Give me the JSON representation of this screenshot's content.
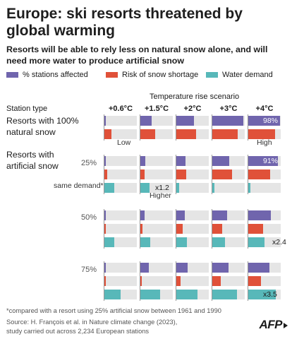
{
  "header": {
    "title": "Europe: ski resorts threatened by global warming",
    "subtitle": "Resorts will be able to rely less on natural snow alone, and will need more water to produce artificial snow"
  },
  "legend": [
    {
      "label": "% stations affected",
      "color": "#7065ad"
    },
    {
      "label": "Risk of snow shortage",
      "color": "#e05139"
    },
    {
      "label": "Water demand",
      "color": "#58b8b9"
    }
  ],
  "labels": {
    "scenario_header": "Temperature rise scenario",
    "station_type": "Station type",
    "natural": "Resorts with 100% natural snow",
    "artificial": "Resorts with artificial snow",
    "same_demand": "same demand*",
    "low": "Low",
    "high": "High",
    "higher": "Higher"
  },
  "chart_data": {
    "type": "bar",
    "scenarios": [
      "+0.6°C",
      "+1.5°C",
      "+2°C",
      "+3°C",
      "+4°C"
    ],
    "groups": [
      {
        "key": "natural",
        "label": "Resorts with 100% natural snow",
        "pct_label": "",
        "stations_affected": [
          0,
          35,
          55,
          95,
          98
        ],
        "snow_shortage": [
          22,
          45,
          60,
          78,
          82
        ],
        "water_demand": null,
        "annotations": {
          "stations_affected_label": "98%",
          "shortage_low": "Low",
          "shortage_high": "High"
        }
      },
      {
        "key": "artificial_25",
        "label": "25%",
        "stations_affected": [
          5,
          15,
          28,
          53,
          91
        ],
        "snow_shortage": [
          8,
          12,
          30,
          60,
          68
        ],
        "water_demand": [
          30,
          28,
          8,
          7,
          7
        ],
        "annotations": {
          "stations_affected_label": "91%",
          "water_demand_baseline": "same demand*",
          "multiplier": "x1.2",
          "multiplier_note": "Higher"
        }
      },
      {
        "key": "artificial_50",
        "label": "50%",
        "stations_affected": [
          5,
          12,
          25,
          45,
          70
        ],
        "snow_shortage": [
          3,
          7,
          20,
          30,
          45
        ],
        "water_demand": [
          30,
          30,
          32,
          40,
          50
        ],
        "annotations": {
          "multiplier": "x2.4"
        }
      },
      {
        "key": "artificial_75",
        "label": "75%",
        "stations_affected": [
          5,
          25,
          35,
          50,
          65
        ],
        "snow_shortage": [
          3,
          5,
          12,
          25,
          40
        ],
        "water_demand": [
          50,
          60,
          65,
          75,
          85
        ],
        "annotations": {
          "multiplier": "x3.5"
        }
      }
    ],
    "xlim": [
      0,
      100
    ]
  },
  "footer": {
    "note1": "*compared with a resort using 25% artificial snow between 1961 and 1990",
    "note2": "Source: H. François et al. in Nature climate change (2023),",
    "note3": "study carried out across 2,234 European stations",
    "logo": "AFP"
  }
}
